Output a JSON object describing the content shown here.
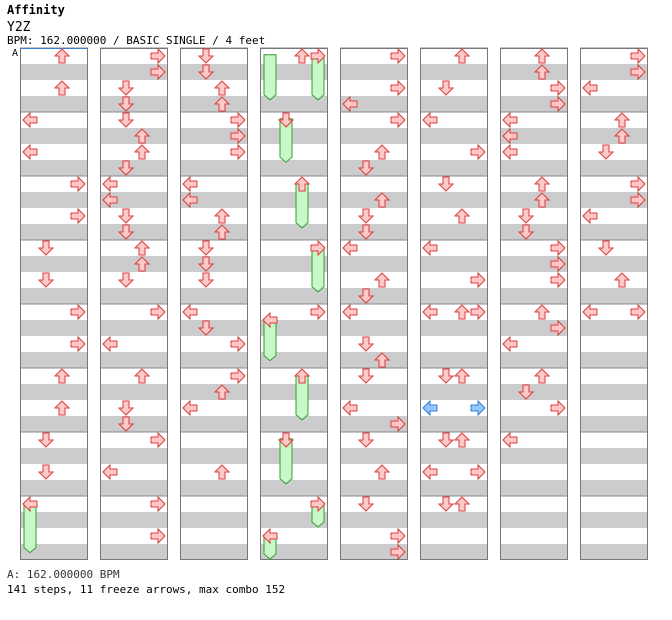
{
  "song": {
    "title": "Affinity",
    "artist": "Y2Z",
    "info": "BPM: 162.000000 / BASIC SINGLE / 4 feet",
    "bpm_marker": "A",
    "bpm_note": "A: 162.000000 BPM",
    "stats": "141 steps, 11 freeze arrows, max combo 152"
  },
  "colors": {
    "tap_fill": "#ffc8c8",
    "tap_stroke": "#dc3c3c",
    "shock_fill": "#8ec8ff",
    "shock_stroke": "#3a7cd0",
    "freeze_fill": "#c8f8c8",
    "freeze_stroke": "#3a9a3a",
    "stripe": "#cccccc",
    "measure_line": "#888888"
  },
  "chart_data": {
    "type": "table",
    "columns": 8,
    "measures_per_column": 8,
    "lanes": [
      "left",
      "down",
      "up",
      "right"
    ],
    "notes": [
      {
        "c": 0,
        "m": 0,
        "b": 0,
        "d": "up"
      },
      {
        "c": 0,
        "m": 0,
        "b": 2,
        "d": "up"
      },
      {
        "c": 0,
        "m": 1,
        "b": 0,
        "d": "left"
      },
      {
        "c": 0,
        "m": 1,
        "b": 2,
        "d": "left"
      },
      {
        "c": 0,
        "m": 2,
        "b": 0,
        "d": "right"
      },
      {
        "c": 0,
        "m": 2,
        "b": 2,
        "d": "right"
      },
      {
        "c": 0,
        "m": 3,
        "b": 0,
        "d": "down"
      },
      {
        "c": 0,
        "m": 3,
        "b": 2,
        "d": "down"
      },
      {
        "c": 0,
        "m": 4,
        "b": 0,
        "d": "right"
      },
      {
        "c": 0,
        "m": 4,
        "b": 2,
        "d": "right"
      },
      {
        "c": 0,
        "m": 5,
        "b": 0,
        "d": "up"
      },
      {
        "c": 0,
        "m": 5,
        "b": 2,
        "d": "up"
      },
      {
        "c": 0,
        "m": 6,
        "b": 0,
        "d": "down"
      },
      {
        "c": 0,
        "m": 6,
        "b": 2,
        "d": "down"
      },
      {
        "c": 0,
        "m": 7,
        "b": 0,
        "d": "left"
      },
      {
        "c": 1,
        "m": 0,
        "b": 0,
        "d": "right"
      },
      {
        "c": 1,
        "m": 0,
        "b": 1,
        "d": "right"
      },
      {
        "c": 1,
        "m": 0,
        "b": 2,
        "d": "down"
      },
      {
        "c": 1,
        "m": 0,
        "b": 3,
        "d": "down"
      },
      {
        "c": 1,
        "m": 1,
        "b": 0,
        "d": "down"
      },
      {
        "c": 1,
        "m": 1,
        "b": 1,
        "d": "up"
      },
      {
        "c": 1,
        "m": 1,
        "b": 2,
        "d": "up"
      },
      {
        "c": 1,
        "m": 1,
        "b": 3,
        "d": "down"
      },
      {
        "c": 1,
        "m": 2,
        "b": 0,
        "d": "left"
      },
      {
        "c": 1,
        "m": 2,
        "b": 1,
        "d": "left"
      },
      {
        "c": 1,
        "m": 2,
        "b": 2,
        "d": "down"
      },
      {
        "c": 1,
        "m": 2,
        "b": 3,
        "d": "down"
      },
      {
        "c": 1,
        "m": 3,
        "b": 0,
        "d": "up"
      },
      {
        "c": 1,
        "m": 3,
        "b": 1,
        "d": "up"
      },
      {
        "c": 1,
        "m": 3,
        "b": 2,
        "d": "down"
      },
      {
        "c": 1,
        "m": 4,
        "b": 0,
        "d": "right"
      },
      {
        "c": 1,
        "m": 4,
        "b": 2,
        "d": "left"
      },
      {
        "c": 1,
        "m": 5,
        "b": 0,
        "d": "up"
      },
      {
        "c": 1,
        "m": 5,
        "b": 2,
        "d": "down"
      },
      {
        "c": 1,
        "m": 5,
        "b": 3,
        "d": "down"
      },
      {
        "c": 1,
        "m": 6,
        "b": 0,
        "d": "right"
      },
      {
        "c": 1,
        "m": 6,
        "b": 2,
        "d": "left"
      },
      {
        "c": 1,
        "m": 7,
        "b": 0,
        "d": "right"
      },
      {
        "c": 1,
        "m": 7,
        "b": 2,
        "d": "right"
      },
      {
        "c": 2,
        "m": 0,
        "b": 0,
        "d": "down"
      },
      {
        "c": 2,
        "m": 0,
        "b": 1,
        "d": "down"
      },
      {
        "c": 2,
        "m": 0,
        "b": 2,
        "d": "up"
      },
      {
        "c": 2,
        "m": 0,
        "b": 3,
        "d": "up"
      },
      {
        "c": 2,
        "m": 1,
        "b": 0,
        "d": "right"
      },
      {
        "c": 2,
        "m": 1,
        "b": 1,
        "d": "right"
      },
      {
        "c": 2,
        "m": 1,
        "b": 2,
        "d": "right"
      },
      {
        "c": 2,
        "m": 2,
        "b": 0,
        "d": "left"
      },
      {
        "c": 2,
        "m": 2,
        "b": 1,
        "d": "left"
      },
      {
        "c": 2,
        "m": 2,
        "b": 2,
        "d": "up"
      },
      {
        "c": 2,
        "m": 2,
        "b": 3,
        "d": "up"
      },
      {
        "c": 2,
        "m": 3,
        "b": 0,
        "d": "down"
      },
      {
        "c": 2,
        "m": 3,
        "b": 1,
        "d": "down"
      },
      {
        "c": 2,
        "m": 3,
        "b": 2,
        "d": "down"
      },
      {
        "c": 2,
        "m": 4,
        "b": 0,
        "d": "left"
      },
      {
        "c": 2,
        "m": 4,
        "b": 1,
        "d": "down"
      },
      {
        "c": 2,
        "m": 4,
        "b": 2,
        "d": "right"
      },
      {
        "c": 2,
        "m": 5,
        "b": 0,
        "d": "right"
      },
      {
        "c": 2,
        "m": 5,
        "b": 1,
        "d": "up"
      },
      {
        "c": 2,
        "m": 5,
        "b": 2,
        "d": "left"
      },
      {
        "c": 2,
        "m": 6,
        "b": 2,
        "d": "up"
      },
      {
        "c": 3,
        "m": 0,
        "b": 0,
        "d": "up"
      },
      {
        "c": 3,
        "m": 0,
        "b": 0,
        "d": "right"
      },
      {
        "c": 3,
        "m": 1,
        "b": 0,
        "d": "down"
      },
      {
        "c": 3,
        "m": 2,
        "b": 0,
        "d": "up"
      },
      {
        "c": 3,
        "m": 3,
        "b": 0,
        "d": "right"
      },
      {
        "c": 3,
        "m": 4,
        "b": 0,
        "d": "right"
      },
      {
        "c": 3,
        "m": 4,
        "b": 0.5,
        "d": "left"
      },
      {
        "c": 3,
        "m": 5,
        "b": 0,
        "d": "up"
      },
      {
        "c": 3,
        "m": 6,
        "b": 0,
        "d": "down"
      },
      {
        "c": 3,
        "m": 7,
        "b": 0,
        "d": "right"
      },
      {
        "c": 3,
        "m": 7,
        "b": 2,
        "d": "left"
      },
      {
        "c": 4,
        "m": 0,
        "b": 0,
        "d": "right"
      },
      {
        "c": 4,
        "m": 0,
        "b": 2,
        "d": "right"
      },
      {
        "c": 4,
        "m": 0,
        "b": 3,
        "d": "left"
      },
      {
        "c": 4,
        "m": 1,
        "b": 0,
        "d": "right"
      },
      {
        "c": 4,
        "m": 1,
        "b": 2,
        "d": "up"
      },
      {
        "c": 4,
        "m": 1,
        "b": 3,
        "d": "down"
      },
      {
        "c": 4,
        "m": 2,
        "b": 1,
        "d": "up"
      },
      {
        "c": 4,
        "m": 2,
        "b": 2,
        "d": "down"
      },
      {
        "c": 4,
        "m": 2,
        "b": 3,
        "d": "down"
      },
      {
        "c": 4,
        "m": 3,
        "b": 0,
        "d": "left"
      },
      {
        "c": 4,
        "m": 3,
        "b": 2,
        "d": "up"
      },
      {
        "c": 4,
        "m": 3,
        "b": 3,
        "d": "down"
      },
      {
        "c": 4,
        "m": 4,
        "b": 0,
        "d": "left"
      },
      {
        "c": 4,
        "m": 4,
        "b": 2,
        "d": "down"
      },
      {
        "c": 4,
        "m": 4,
        "b": 3,
        "d": "up"
      },
      {
        "c": 4,
        "m": 5,
        "b": 0,
        "d": "down"
      },
      {
        "c": 4,
        "m": 5,
        "b": 2,
        "d": "left"
      },
      {
        "c": 4,
        "m": 5,
        "b": 3,
        "d": "right"
      },
      {
        "c": 4,
        "m": 6,
        "b": 0,
        "d": "down"
      },
      {
        "c": 4,
        "m": 6,
        "b": 2,
        "d": "up"
      },
      {
        "c": 4,
        "m": 7,
        "b": 0,
        "d": "down"
      },
      {
        "c": 4,
        "m": 7,
        "b": 2,
        "d": "right"
      },
      {
        "c": 4,
        "m": 7,
        "b": 3,
        "d": "right"
      },
      {
        "c": 5,
        "m": 0,
        "b": 0,
        "d": "up"
      },
      {
        "c": 5,
        "m": 0,
        "b": 2,
        "d": "down"
      },
      {
        "c": 5,
        "m": 1,
        "b": 0,
        "d": "left"
      },
      {
        "c": 5,
        "m": 1,
        "b": 2,
        "d": "right"
      },
      {
        "c": 5,
        "m": 2,
        "b": 0,
        "d": "down"
      },
      {
        "c": 5,
        "m": 2,
        "b": 2,
        "d": "up"
      },
      {
        "c": 5,
        "m": 3,
        "b": 0,
        "d": "left"
      },
      {
        "c": 5,
        "m": 3,
        "b": 2,
        "d": "right"
      },
      {
        "c": 5,
        "m": 4,
        "b": 0,
        "d": "left"
      },
      {
        "c": 5,
        "m": 4,
        "b": 0,
        "d": "up"
      },
      {
        "c": 5,
        "m": 4,
        "b": 0,
        "d": "right"
      },
      {
        "c": 5,
        "m": 5,
        "b": 0,
        "d": "down"
      },
      {
        "c": 5,
        "m": 5,
        "b": 0,
        "d": "up"
      },
      {
        "c": 5,
        "m": 5,
        "b": 2,
        "d": "left",
        "s": "shock"
      },
      {
        "c": 5,
        "m": 5,
        "b": 2,
        "d": "right",
        "s": "shock"
      },
      {
        "c": 5,
        "m": 6,
        "b": 0,
        "d": "down"
      },
      {
        "c": 5,
        "m": 6,
        "b": 0,
        "d": "up"
      },
      {
        "c": 5,
        "m": 6,
        "b": 2,
        "d": "left"
      },
      {
        "c": 5,
        "m": 6,
        "b": 2,
        "d": "right"
      },
      {
        "c": 5,
        "m": 7,
        "b": 0,
        "d": "down"
      },
      {
        "c": 5,
        "m": 7,
        "b": 0,
        "d": "up"
      },
      {
        "c": 6,
        "m": 0,
        "b": 0,
        "d": "up"
      },
      {
        "c": 6,
        "m": 0,
        "b": 1,
        "d": "up"
      },
      {
        "c": 6,
        "m": 0,
        "b": 2,
        "d": "right"
      },
      {
        "c": 6,
        "m": 0,
        "b": 3,
        "d": "right"
      },
      {
        "c": 6,
        "m": 1,
        "b": 0,
        "d": "left"
      },
      {
        "c": 6,
        "m": 1,
        "b": 1,
        "d": "left"
      },
      {
        "c": 6,
        "m": 1,
        "b": 2,
        "d": "left"
      },
      {
        "c": 6,
        "m": 2,
        "b": 0,
        "d": "up"
      },
      {
        "c": 6,
        "m": 2,
        "b": 1,
        "d": "up"
      },
      {
        "c": 6,
        "m": 2,
        "b": 2,
        "d": "down"
      },
      {
        "c": 6,
        "m": 2,
        "b": 3,
        "d": "down"
      },
      {
        "c": 6,
        "m": 3,
        "b": 0,
        "d": "right"
      },
      {
        "c": 6,
        "m": 3,
        "b": 1,
        "d": "right"
      },
      {
        "c": 6,
        "m": 3,
        "b": 2,
        "d": "right"
      },
      {
        "c": 6,
        "m": 4,
        "b": 0,
        "d": "up"
      },
      {
        "c": 6,
        "m": 4,
        "b": 1,
        "d": "right"
      },
      {
        "c": 6,
        "m": 4,
        "b": 2,
        "d": "left"
      },
      {
        "c": 6,
        "m": 5,
        "b": 0,
        "d": "up"
      },
      {
        "c": 6,
        "m": 5,
        "b": 1,
        "d": "down"
      },
      {
        "c": 6,
        "m": 5,
        "b": 2,
        "d": "right"
      },
      {
        "c": 6,
        "m": 6,
        "b": 0,
        "d": "left"
      },
      {
        "c": 7,
        "m": 0,
        "b": 0,
        "d": "right"
      },
      {
        "c": 7,
        "m": 0,
        "b": 1,
        "d": "right"
      },
      {
        "c": 7,
        "m": 0,
        "b": 2,
        "d": "left"
      },
      {
        "c": 7,
        "m": 1,
        "b": 0,
        "d": "up"
      },
      {
        "c": 7,
        "m": 1,
        "b": 1,
        "d": "up"
      },
      {
        "c": 7,
        "m": 1,
        "b": 2,
        "d": "down"
      },
      {
        "c": 7,
        "m": 2,
        "b": 0,
        "d": "right"
      },
      {
        "c": 7,
        "m": 2,
        "b": 1,
        "d": "right"
      },
      {
        "c": 7,
        "m": 2,
        "b": 2,
        "d": "left"
      },
      {
        "c": 7,
        "m": 3,
        "b": 0,
        "d": "down"
      },
      {
        "c": 7,
        "m": 3,
        "b": 2,
        "d": "up"
      },
      {
        "c": 7,
        "m": 4,
        "b": 0,
        "d": "left"
      },
      {
        "c": 7,
        "m": 4,
        "b": 0,
        "d": "right"
      }
    ],
    "freezes": [
      {
        "c": 0,
        "m": 7,
        "b": 0.3,
        "len": 2.8,
        "d": "left"
      },
      {
        "c": 3,
        "m": 0,
        "b": 0.3,
        "len": 2.5,
        "d": "left"
      },
      {
        "c": 3,
        "m": 0,
        "b": 0.3,
        "len": 2.5,
        "d": "right"
      },
      {
        "c": 3,
        "m": 1,
        "b": 0.3,
        "len": 2.4,
        "d": "down"
      },
      {
        "c": 3,
        "m": 2,
        "b": 0.3,
        "len": 2.5,
        "d": "up"
      },
      {
        "c": 3,
        "m": 3,
        "b": 0.3,
        "len": 2.5,
        "d": "right"
      },
      {
        "c": 3,
        "m": 4,
        "b": 0.8,
        "len": 2.3,
        "d": "left"
      },
      {
        "c": 3,
        "m": 5,
        "b": 0.3,
        "len": 2.5,
        "d": "up"
      },
      {
        "c": 3,
        "m": 6,
        "b": 0.3,
        "len": 2.5,
        "d": "down"
      },
      {
        "c": 3,
        "m": 7,
        "b": 0.3,
        "len": 1.2,
        "d": "right"
      },
      {
        "c": 3,
        "m": 7,
        "b": 2.3,
        "len": 1.2,
        "d": "left"
      }
    ]
  }
}
